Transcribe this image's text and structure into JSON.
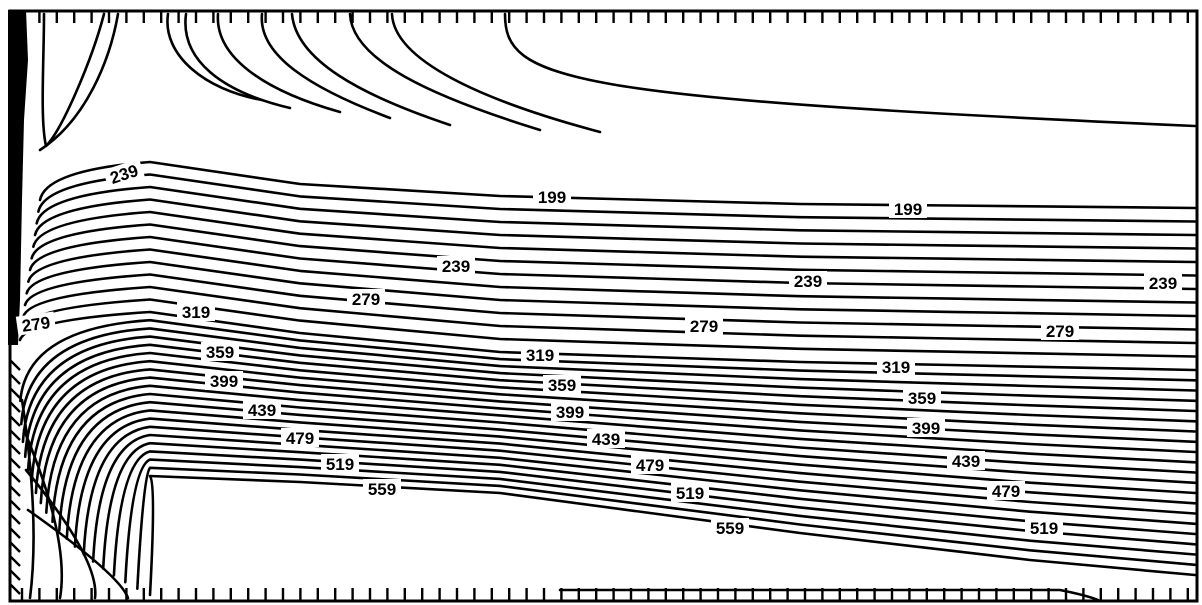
{
  "chart_data": {
    "type": "contour",
    "levels": [
      199,
      239,
      279,
      319,
      359,
      399,
      439,
      479,
      519,
      559
    ],
    "contour_labels": [
      {
        "text": "239"
      },
      {
        "text": "199"
      },
      {
        "text": "199"
      },
      {
        "text": "239"
      },
      {
        "text": "239"
      },
      {
        "text": "239"
      },
      {
        "text": "279"
      },
      {
        "text": "279"
      },
      {
        "text": "279"
      },
      {
        "text": "279"
      },
      {
        "text": "319"
      },
      {
        "text": "319"
      },
      {
        "text": "319"
      },
      {
        "text": "359"
      },
      {
        "text": "359"
      },
      {
        "text": "359"
      },
      {
        "text": "399"
      },
      {
        "text": "399"
      },
      {
        "text": "399"
      },
      {
        "text": "439"
      },
      {
        "text": "439"
      },
      {
        "text": "439"
      },
      {
        "text": "479"
      },
      {
        "text": "479"
      },
      {
        "text": "479"
      },
      {
        "text": "519"
      },
      {
        "text": "519"
      },
      {
        "text": "519"
      },
      {
        "text": "559"
      },
      {
        "text": "559"
      }
    ],
    "grid": false,
    "legend": "none",
    "title": "",
    "xlabel": "",
    "ylabel": ""
  }
}
